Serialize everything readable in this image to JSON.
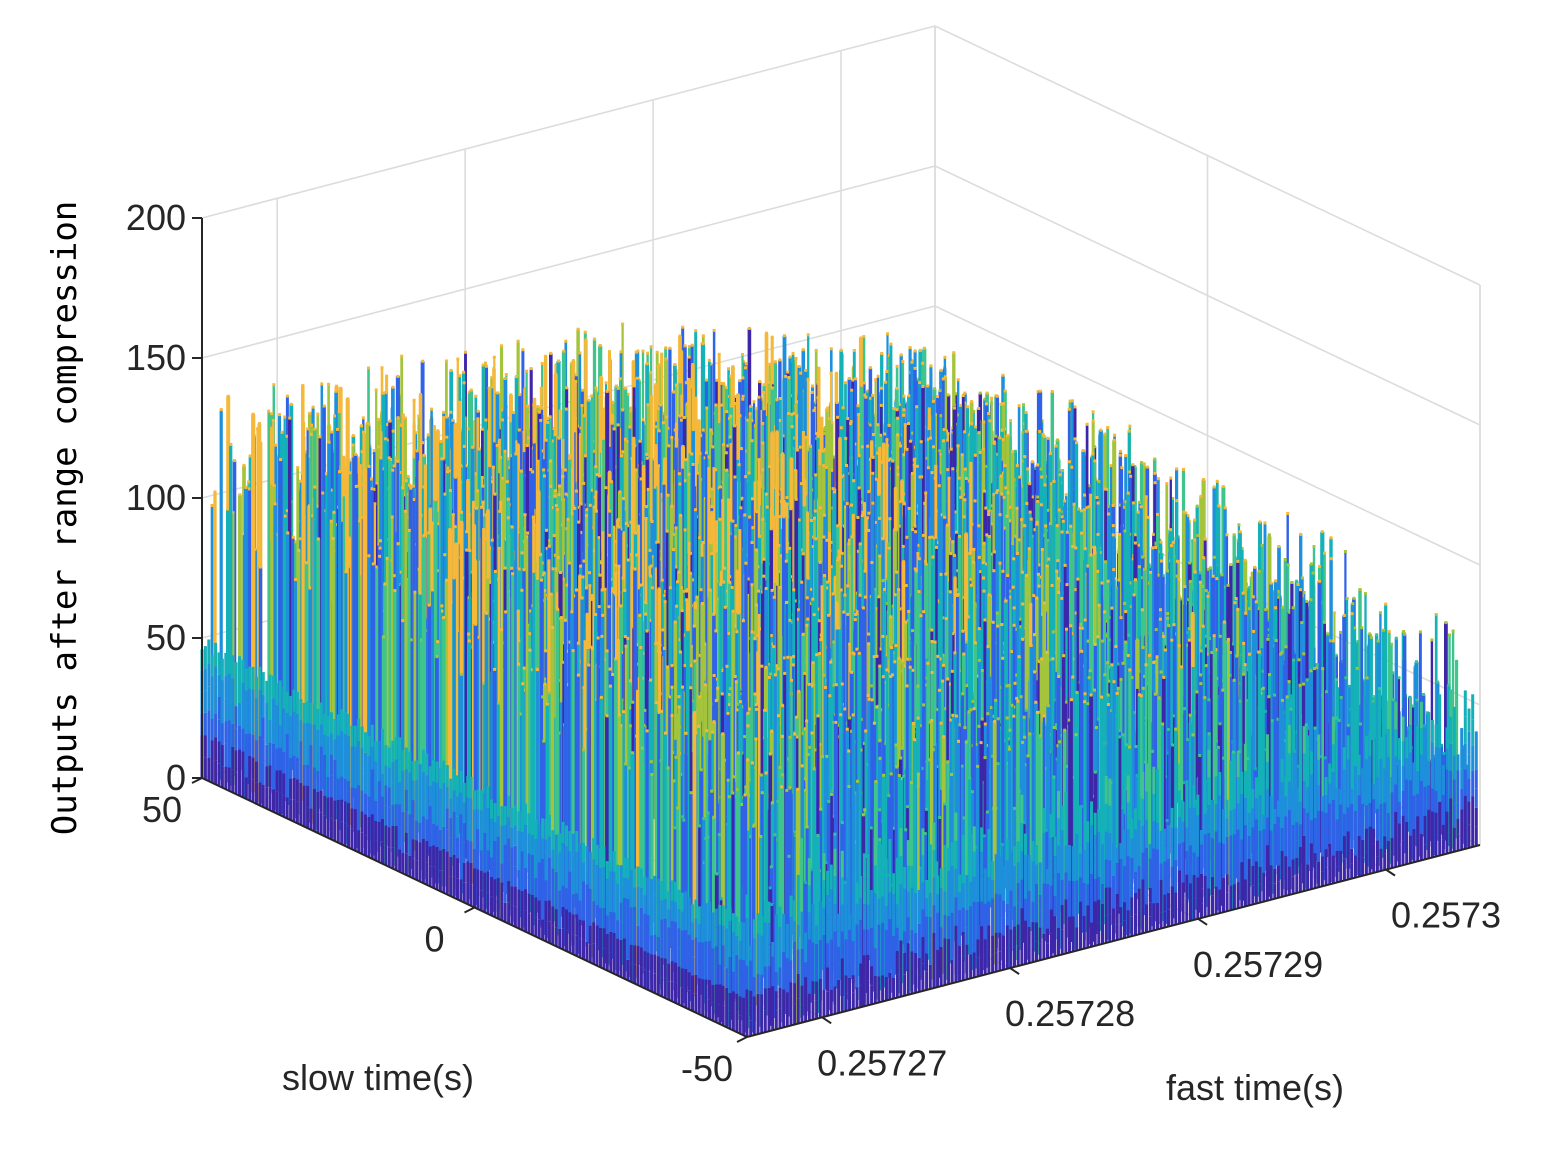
{
  "chart_data": {
    "type": "surface-3d",
    "title": "",
    "xlabel": "slow time(s)",
    "ylabel": "fast time(s)",
    "zlabel": "Outputs after range compression",
    "xlim": [
      -50,
      50
    ],
    "ylim": [
      0.257266,
      0.257305
    ],
    "zlim": [
      0,
      200
    ],
    "x_ticks": [
      50,
      0,
      -50
    ],
    "x_tick_labels": [
      "50",
      "0",
      "-50"
    ],
    "y_ticks": [
      0.25727,
      0.25728,
      0.25729,
      0.2573
    ],
    "y_tick_labels": [
      "0.25727",
      "0.25728",
      "0.25729",
      "0.2573"
    ],
    "z_ticks": [
      0,
      50,
      100,
      150,
      200
    ],
    "z_tick_labels": [
      "0",
      "50",
      "100",
      "150",
      "200"
    ],
    "grid": true,
    "colormap": [
      "#3e26a8",
      "#2f62e7",
      "#1e8fda",
      "#15b1b8",
      "#3fc48c",
      "#a4c43c",
      "#f4b83a"
    ],
    "surface_description": {
      "peak_value": 125,
      "edge_value_slow_time": 50,
      "edge_value_fast_time": 50,
      "noise_amplitude": 35
    }
  }
}
